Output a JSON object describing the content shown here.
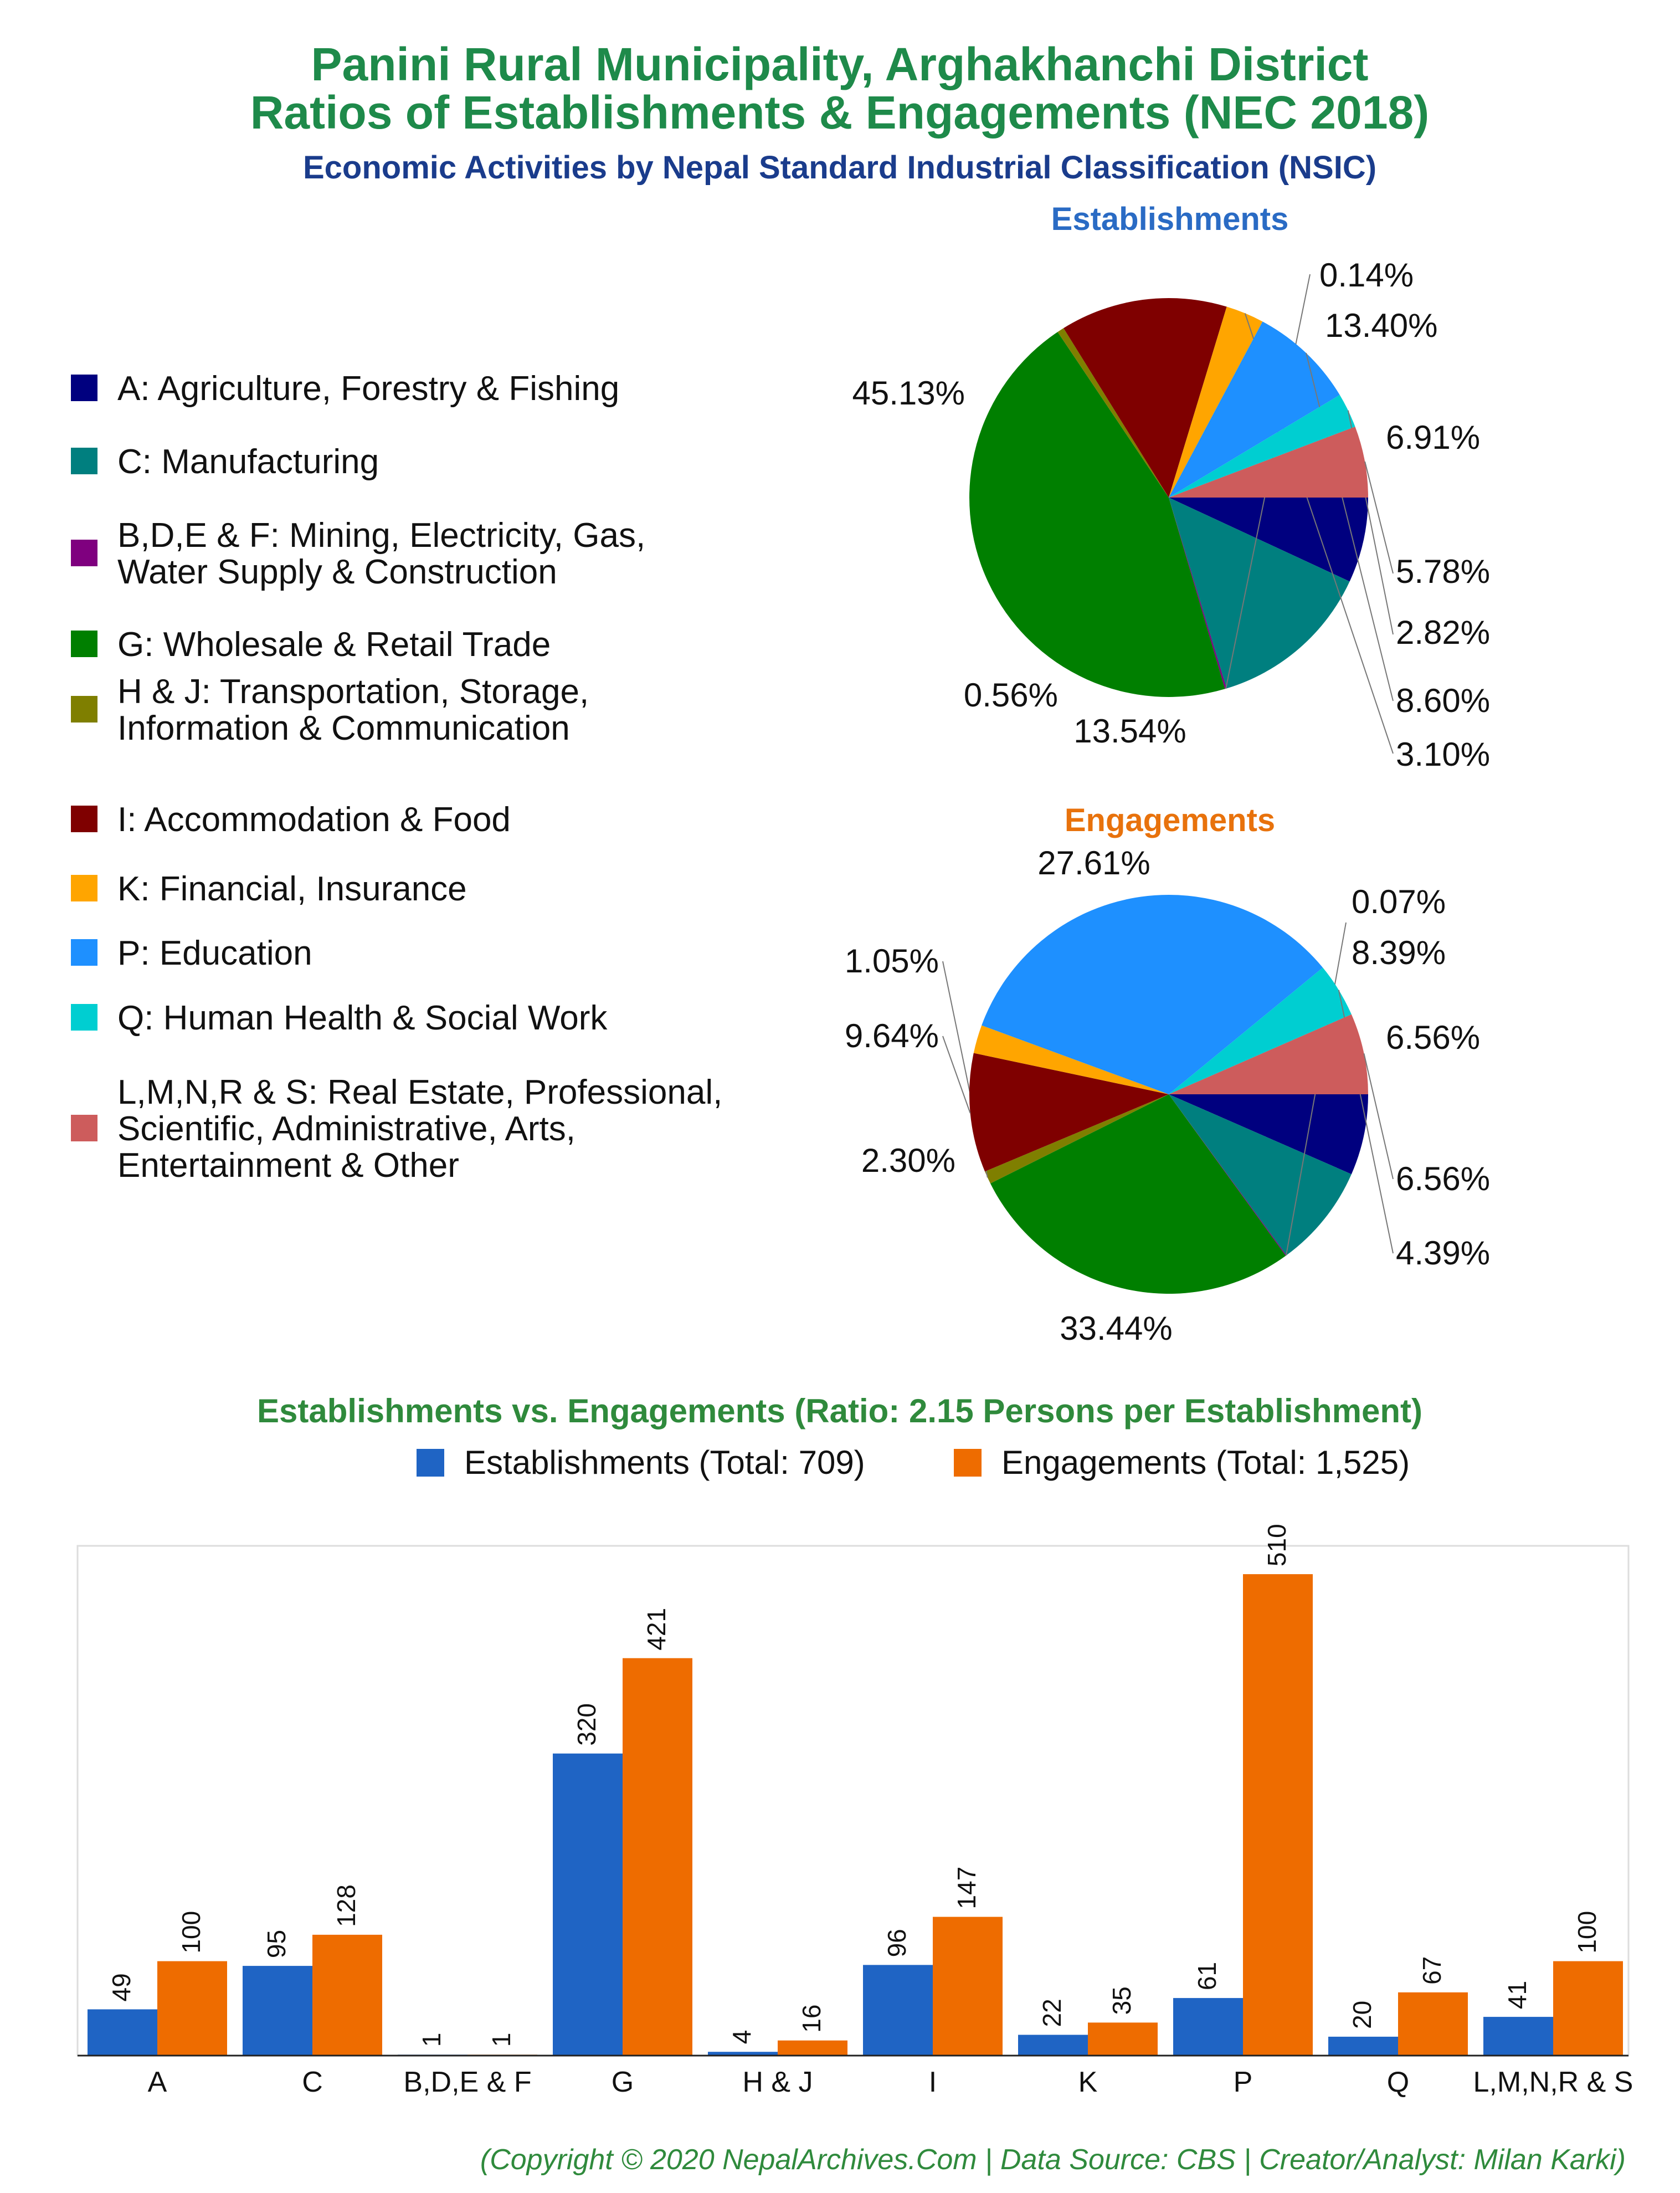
{
  "title_line1": "Panini Rural Municipality, Arghakhanchi District",
  "title_line2": "Ratios of Establishments & Engagements (NEC 2018)",
  "subtitle": "Economic Activities by Nepal Standard Industrial Classification (NSIC)",
  "credit": "(Copyright © 2020 NepalArchives.Com | Data Source: CBS | Creator/Analyst: Milan Karki)",
  "colors": {
    "A": "#00007f",
    "C": "#007f7f",
    "BDEF": "#7f007f",
    "G": "#007f00",
    "HJ": "#7f7f00",
    "I": "#7f0000",
    "K": "#ffa500",
    "P": "#1e90ff",
    "Q": "#00ced1",
    "LMNRS": "#cd5c5c",
    "establishments_bar": "#1f64c4",
    "engagements_bar": "#ee6c00"
  },
  "legend": [
    {
      "key": "A",
      "lines": [
        "A: Agriculture, Forestry & Fishing"
      ]
    },
    {
      "key": "C",
      "lines": [
        "C: Manufacturing"
      ]
    },
    {
      "key": "BDEF",
      "lines": [
        "B,D,E & F: Mining, Electricity, Gas,",
        "Water Supply & Construction"
      ]
    },
    {
      "key": "G",
      "lines": [
        "G: Wholesale & Retail Trade"
      ]
    },
    {
      "key": "HJ",
      "lines": [
        "H & J: Transportation, Storage,",
        "Information & Communication"
      ]
    },
    {
      "key": "I",
      "lines": [
        "I: Accommodation & Food"
      ]
    },
    {
      "key": "K",
      "lines": [
        "K: Financial, Insurance"
      ]
    },
    {
      "key": "P",
      "lines": [
        "P: Education"
      ]
    },
    {
      "key": "Q",
      "lines": [
        "Q: Human Health & Social Work"
      ]
    },
    {
      "key": "LMNRS",
      "lines": [
        "L,M,N,R & S: Real Estate, Professional,",
        "Scientific, Administrative, Arts,",
        "Entertainment & Other"
      ]
    }
  ],
  "chart_data": [
    {
      "type": "pie",
      "title": "Establishments",
      "slices": [
        {
          "key": "A",
          "value": 6.91,
          "label": "6.91%"
        },
        {
          "key": "C",
          "value": 13.4,
          "label": "13.40%"
        },
        {
          "key": "BDEF",
          "value": 0.14,
          "label": "0.14%"
        },
        {
          "key": "G",
          "value": 45.13,
          "label": "45.13%"
        },
        {
          "key": "HJ",
          "value": 0.56,
          "label": "0.56%"
        },
        {
          "key": "I",
          "value": 13.54,
          "label": "13.54%"
        },
        {
          "key": "K",
          "value": 3.1,
          "label": "3.10%"
        },
        {
          "key": "P",
          "value": 8.6,
          "label": "8.60%"
        },
        {
          "key": "Q",
          "value": 2.82,
          "label": "2.82%"
        },
        {
          "key": "LMNRS",
          "value": 5.78,
          "label": "5.78%"
        }
      ]
    },
    {
      "type": "pie",
      "title": "Engagements",
      "slices": [
        {
          "key": "A",
          "value": 6.56,
          "label": "6.56%"
        },
        {
          "key": "C",
          "value": 8.39,
          "label": "8.39%"
        },
        {
          "key": "BDEF",
          "value": 0.07,
          "label": "0.07%"
        },
        {
          "key": "G",
          "value": 27.61,
          "label": "27.61%"
        },
        {
          "key": "HJ",
          "value": 1.05,
          "label": "1.05%"
        },
        {
          "key": "I",
          "value": 9.64,
          "label": "9.64%"
        },
        {
          "key": "K",
          "value": 2.3,
          "label": "2.30%"
        },
        {
          "key": "P",
          "value": 33.44,
          "label": "33.44%"
        },
        {
          "key": "Q",
          "value": 4.39,
          "label": "4.39%"
        },
        {
          "key": "LMNRS",
          "value": 6.56,
          "label": "6.56%"
        }
      ]
    },
    {
      "type": "bar",
      "title": "Establishments vs. Engagements (Ratio: 2.15 Persons per Establishment)",
      "categories": [
        "A",
        "C",
        "B,D,E & F",
        "G",
        "H & J",
        "I",
        "K",
        "P",
        "Q",
        "L,M,N,R & S"
      ],
      "series": [
        {
          "name": "Establishments (Total: 709)",
          "values": [
            49,
            95,
            1,
            320,
            4,
            96,
            22,
            61,
            20,
            41
          ]
        },
        {
          "name": "Engagements (Total: 1,525)",
          "values": [
            100,
            128,
            1,
            421,
            16,
            147,
            35,
            510,
            67,
            100
          ]
        }
      ],
      "ylim": [
        0,
        540
      ],
      "legend_position": "top",
      "grid": false
    }
  ]
}
